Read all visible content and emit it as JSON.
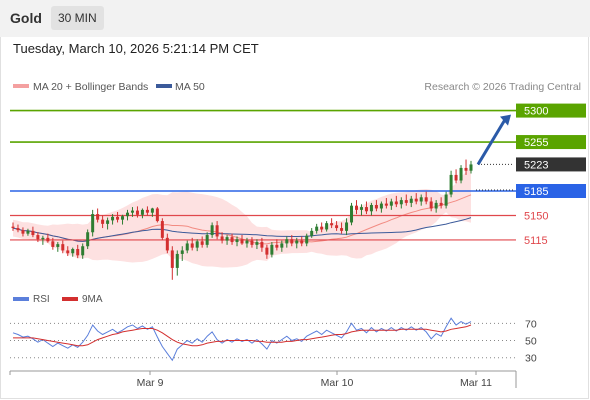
{
  "header": {
    "symbol": "Gold",
    "timeframe": "30 MIN",
    "timestamp": "Tuesday, March 10, 2026 5:21:14 PM CET"
  },
  "legend": {
    "ma20_bb": "MA 20 + Bollinger Bands",
    "ma50": "MA 50",
    "copyright": "Research © 2026 Trading Central"
  },
  "rsi_legend": {
    "rsi": "RSI",
    "ma9": "9MA"
  },
  "colors": {
    "resistance": "#5aa400",
    "support": "#e0474c",
    "current_price": "#333333",
    "pivot": "#2a63e6",
    "bullish_candle": "#2e7d32",
    "bearish_candle": "#d32f2f",
    "bollinger_fill": "#fde1e1",
    "ma20": "#f28b82",
    "ma50": "#3b5a9a",
    "arrow": "#2b5aa8",
    "rsi_line": "#5b7fdb",
    "rsi_ma": "#d32f2f"
  },
  "chart_data": {
    "type": "candlestick",
    "instrument": "Gold",
    "timeframe": "30 MIN",
    "x_ticks": [
      "Mar 9",
      "Mar 10",
      "Mar 11"
    ],
    "price_axis": {
      "ylim": [
        5052,
        5318
      ]
    },
    "levels": [
      {
        "value": 5300,
        "label": "5300",
        "kind": "resistance"
      },
      {
        "value": 5255,
        "label": "5255",
        "kind": "resistance"
      },
      {
        "value": 5223,
        "label": "5223",
        "kind": "current"
      },
      {
        "value": 5185,
        "label": "5185",
        "kind": "pivot"
      },
      {
        "value": 5150,
        "label": "5150",
        "kind": "support"
      },
      {
        "value": 5115,
        "label": "5115",
        "kind": "support"
      }
    ],
    "target_arrow": {
      "from": 5223,
      "to": 5300
    },
    "candles_ohlc": [
      [
        5134,
        5140,
        5128,
        5132
      ],
      [
        5132,
        5137,
        5126,
        5129
      ],
      [
        5129,
        5133,
        5120,
        5124
      ],
      [
        5124,
        5131,
        5121,
        5128
      ],
      [
        5128,
        5134,
        5119,
        5122
      ],
      [
        5122,
        5126,
        5112,
        5116
      ],
      [
        5116,
        5121,
        5108,
        5118
      ],
      [
        5118,
        5124,
        5111,
        5113
      ],
      [
        5113,
        5118,
        5101,
        5105
      ],
      [
        5105,
        5112,
        5098,
        5109
      ],
      [
        5109,
        5114,
        5096,
        5100
      ],
      [
        5100,
        5106,
        5092,
        5096
      ],
      [
        5096,
        5104,
        5091,
        5102
      ],
      [
        5102,
        5108,
        5089,
        5093
      ],
      [
        5093,
        5110,
        5088,
        5106
      ],
      [
        5106,
        5130,
        5102,
        5126
      ],
      [
        5126,
        5158,
        5120,
        5152
      ],
      [
        5152,
        5160,
        5140,
        5144
      ],
      [
        5144,
        5150,
        5132,
        5138
      ],
      [
        5138,
        5147,
        5130,
        5143
      ],
      [
        5143,
        5152,
        5137,
        5148
      ],
      [
        5148,
        5155,
        5140,
        5144
      ],
      [
        5144,
        5151,
        5137,
        5149
      ],
      [
        5149,
        5158,
        5143,
        5154
      ],
      [
        5154,
        5162,
        5148,
        5157
      ],
      [
        5157,
        5163,
        5147,
        5151
      ],
      [
        5151,
        5160,
        5146,
        5158
      ],
      [
        5158,
        5163,
        5150,
        5154
      ],
      [
        5154,
        5161,
        5148,
        5160
      ],
      [
        5160,
        5162,
        5140,
        5142
      ],
      [
        5142,
        5146,
        5115,
        5118
      ],
      [
        5118,
        5124,
        5096,
        5100
      ],
      [
        5100,
        5106,
        5058,
        5075
      ],
      [
        5075,
        5100,
        5064,
        5095
      ],
      [
        5095,
        5106,
        5085,
        5100
      ],
      [
        5100,
        5114,
        5096,
        5110
      ],
      [
        5110,
        5118,
        5100,
        5104
      ],
      [
        5104,
        5116,
        5099,
        5113
      ],
      [
        5113,
        5120,
        5104,
        5108
      ],
      [
        5108,
        5126,
        5104,
        5122
      ],
      [
        5122,
        5140,
        5118,
        5136
      ],
      [
        5136,
        5142,
        5116,
        5120
      ],
      [
        5120,
        5126,
        5110,
        5114
      ],
      [
        5114,
        5122,
        5108,
        5119
      ],
      [
        5119,
        5124,
        5108,
        5112
      ],
      [
        5112,
        5120,
        5106,
        5116
      ],
      [
        5116,
        5122,
        5108,
        5110
      ],
      [
        5110,
        5118,
        5104,
        5114
      ],
      [
        5114,
        5119,
        5104,
        5108
      ],
      [
        5108,
        5116,
        5102,
        5112
      ],
      [
        5112,
        5118,
        5098,
        5104
      ],
      [
        5104,
        5108,
        5088,
        5094
      ],
      [
        5094,
        5112,
        5090,
        5108
      ],
      [
        5108,
        5116,
        5100,
        5104
      ],
      [
        5104,
        5114,
        5098,
        5110
      ],
      [
        5110,
        5120,
        5104,
        5116
      ],
      [
        5116,
        5122,
        5106,
        5110
      ],
      [
        5110,
        5118,
        5103,
        5114
      ],
      [
        5114,
        5120,
        5106,
        5110
      ],
      [
        5110,
        5124,
        5106,
        5121
      ],
      [
        5121,
        5132,
        5118,
        5128
      ],
      [
        5128,
        5138,
        5124,
        5134
      ],
      [
        5134,
        5140,
        5126,
        5130
      ],
      [
        5130,
        5142,
        5127,
        5139
      ],
      [
        5139,
        5146,
        5132,
        5136
      ],
      [
        5136,
        5142,
        5128,
        5132
      ],
      [
        5132,
        5140,
        5124,
        5128
      ],
      [
        5128,
        5146,
        5122,
        5140
      ],
      [
        5140,
        5168,
        5136,
        5164
      ],
      [
        5164,
        5172,
        5152,
        5158
      ],
      [
        5158,
        5166,
        5150,
        5162
      ],
      [
        5162,
        5170,
        5152,
        5156
      ],
      [
        5156,
        5168,
        5150,
        5165
      ],
      [
        5165,
        5172,
        5156,
        5160
      ],
      [
        5160,
        5170,
        5154,
        5167
      ],
      [
        5167,
        5175,
        5160,
        5164
      ],
      [
        5164,
        5174,
        5158,
        5170
      ],
      [
        5170,
        5178,
        5162,
        5166
      ],
      [
        5166,
        5176,
        5160,
        5172
      ],
      [
        5172,
        5180,
        5164,
        5168
      ],
      [
        5168,
        5178,
        5162,
        5174
      ],
      [
        5174,
        5182,
        5166,
        5170
      ],
      [
        5170,
        5180,
        5164,
        5176
      ],
      [
        5176,
        5184,
        5166,
        5170
      ],
      [
        5170,
        5176,
        5156,
        5160
      ],
      [
        5160,
        5172,
        5154,
        5168
      ],
      [
        5168,
        5176,
        5160,
        5164
      ],
      [
        5164,
        5184,
        5160,
        5180
      ],
      [
        5180,
        5214,
        5176,
        5208
      ],
      [
        5208,
        5216,
        5196,
        5200
      ],
      [
        5200,
        5222,
        5196,
        5218
      ],
      [
        5218,
        5230,
        5208,
        5214
      ],
      [
        5214,
        5228,
        5210,
        5223
      ]
    ],
    "rsi_axis": {
      "ticks": [
        70,
        50,
        30
      ],
      "ylim": [
        18,
        82
      ]
    },
    "rsi_values": [
      59,
      57,
      54,
      55,
      52,
      48,
      51,
      47,
      43,
      47,
      44,
      41,
      45,
      42,
      48,
      56,
      68,
      61,
      57,
      60,
      63,
      59,
      62,
      66,
      68,
      64,
      67,
      63,
      66,
      54,
      43,
      35,
      27,
      40,
      45,
      50,
      47,
      52,
      48,
      55,
      60,
      51,
      47,
      51,
      48,
      52,
      49,
      51,
      47,
      51,
      46,
      40,
      50,
      47,
      51,
      55,
      50,
      52,
      49,
      55,
      58,
      61,
      57,
      62,
      59,
      56,
      53,
      60,
      70,
      62,
      64,
      59,
      65,
      60,
      64,
      61,
      65,
      61,
      65,
      62,
      66,
      62,
      65,
      60,
      52,
      58,
      55,
      66,
      76,
      68,
      72,
      69,
      72
    ],
    "rsi_ma_values": [
      53,
      53,
      53,
      53,
      53,
      52,
      51,
      50,
      49,
      48,
      47,
      46,
      45,
      44,
      44,
      45,
      48,
      51,
      53,
      55,
      57,
      58,
      60,
      61,
      62,
      63,
      64,
      64,
      64,
      62,
      59,
      55,
      51,
      48,
      46,
      45,
      44,
      44,
      45,
      47,
      48,
      49,
      49,
      50,
      50,
      50,
      50,
      50,
      50,
      49,
      49,
      48,
      48,
      48,
      48,
      49,
      49,
      50,
      51,
      51,
      52,
      53,
      54,
      55,
      56,
      57,
      57,
      58,
      60,
      61,
      62,
      62,
      62,
      62,
      62,
      62,
      62,
      62,
      63,
      63,
      63,
      63,
      63,
      63,
      62,
      61,
      60,
      61,
      63,
      64,
      65,
      66,
      68
    ]
  }
}
